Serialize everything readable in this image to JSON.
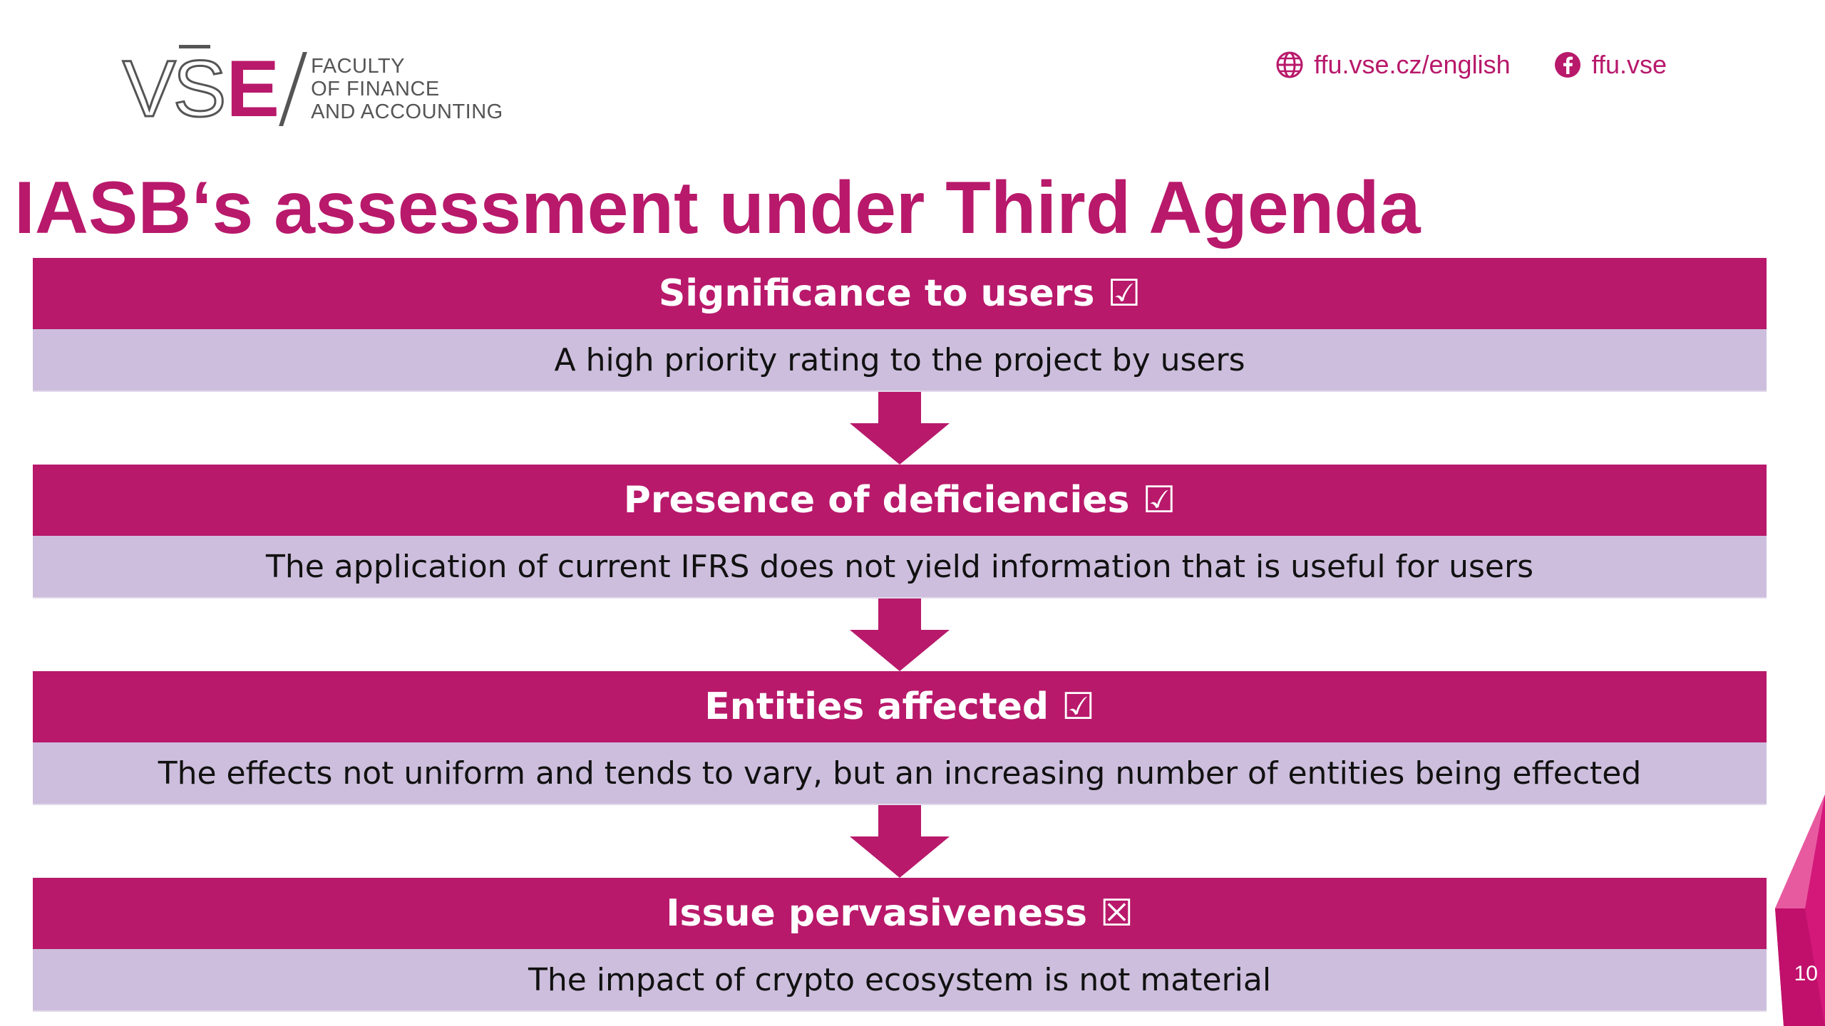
{
  "logo": {
    "mark_v": "V",
    "mark_s": "S",
    "mark_e": "E",
    "line1": "FACULTY",
    "line2": "OF FINANCE",
    "line3": "AND ACCOUNTING"
  },
  "header": {
    "web_icon": "globe-icon",
    "web_label": "ffu.vse.cz/english",
    "facebook_icon": "facebook-icon",
    "facebook_label": "ffu.vse"
  },
  "title": "IASB‘s assessment under Third Agenda",
  "steps": [
    {
      "heading": "Significance to users ☑",
      "text": "A high priority rating to the project by users"
    },
    {
      "heading": "Presence of deficiencies ☑",
      "text": "The application of current IFRS does not yield information that is useful for users"
    },
    {
      "heading": "Entities affected ☑",
      "text": "The effects not uniform and tends to vary, but an increasing number of entities being effected"
    },
    {
      "heading": "Issue pervasiveness ☒",
      "text": "The impact of crypto ecosystem is not material"
    }
  ],
  "page_number": "10",
  "colors": {
    "accent": "#b8196b",
    "body_band": "#cdbedd",
    "text_dark": "#111111",
    "logo_gray": "#555555"
  }
}
